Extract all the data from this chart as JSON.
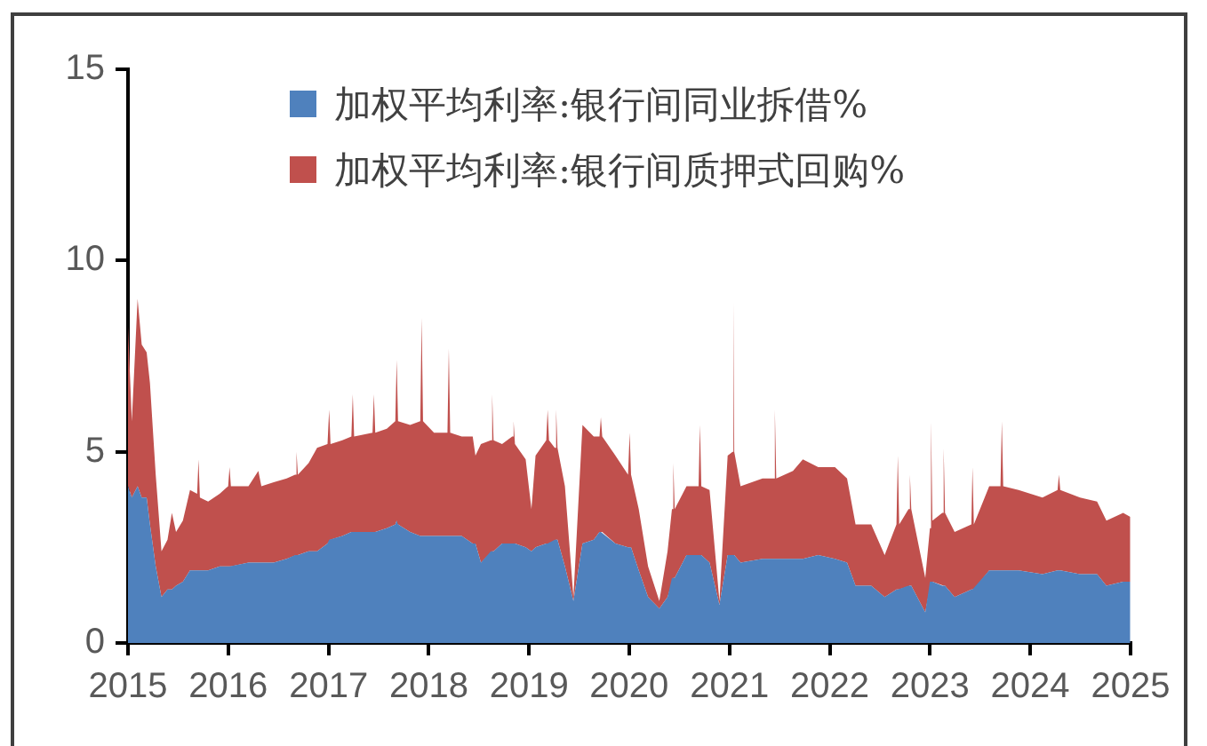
{
  "chart_data": {
    "type": "area",
    "stacked": true,
    "legend": "top",
    "x": [
      "2015-01-01",
      "2015-01-15",
      "2015-02-05",
      "2015-02-20",
      "2015-03-10",
      "2015-03-22",
      "2015-04-12",
      "2015-05-03",
      "2015-05-25",
      "2015-06-10",
      "2015-06-25",
      "2015-07-20",
      "2015-08-15",
      "2015-09-10",
      "2015-09-15",
      "2015-09-20",
      "2015-10-20",
      "2015-12-01",
      "2016-01-01",
      "2016-01-06",
      "2016-01-11",
      "2016-03-15",
      "2016-04-20",
      "2016-05-01",
      "2016-06-15",
      "2016-08-01",
      "2016-09-01",
      "2016-09-06",
      "2016-09-11",
      "2016-10-20",
      "2016-11-20",
      "2016-12-28",
      "2017-01-03",
      "2017-01-08",
      "2017-02-20",
      "2017-03-25",
      "2017-03-30",
      "2017-04-04",
      "2017-06-10",
      "2017-06-15",
      "2017-06-20",
      "2017-08-01",
      "2017-09-01",
      "2017-09-06",
      "2017-09-11",
      "2017-10-25",
      "2017-12-01",
      "2017-12-06",
      "2017-12-11",
      "2018-01-20",
      "2018-03-10",
      "2018-03-15",
      "2018-03-20",
      "2018-05-01",
      "2018-06-10",
      "2018-06-20",
      "2018-07-10",
      "2018-08-15",
      "2018-08-20",
      "2018-08-25",
      "2018-09-25",
      "2018-11-01",
      "2018-11-06",
      "2018-11-11",
      "2018-12-20",
      "2019-01-10",
      "2019-01-25",
      "2019-03-05",
      "2019-03-10",
      "2019-03-15",
      "2019-04-05",
      "2019-04-10",
      "2019-04-15",
      "2019-05-12",
      "2019-06-12",
      "2019-07-15",
      "2019-08-25",
      "2019-09-15",
      "2019-09-20",
      "2019-09-25",
      "2019-11-12",
      "2019-12-28",
      "2020-01-03",
      "2020-01-08",
      "2020-02-05",
      "2020-03-10",
      "2020-04-20",
      "2020-05-20",
      "2020-06-05",
      "2020-06-10",
      "2020-06-15",
      "2020-07-28",
      "2020-09-10",
      "2020-09-15",
      "2020-09-20",
      "2020-10-20",
      "2020-11-25",
      "2020-12-25",
      "2021-01-12",
      "2021-01-15",
      "2021-01-18",
      "2021-02-10",
      "2021-05-01",
      "2021-06-10",
      "2021-06-15",
      "2021-06-20",
      "2021-08-20",
      "2021-09-25",
      "2021-11-20",
      "2022-01-20",
      "2022-03-05",
      "2022-04-05",
      "2022-06-01",
      "2022-07-20",
      "2022-09-01",
      "2022-09-06",
      "2022-09-11",
      "2022-10-15",
      "2022-10-20",
      "2022-10-25",
      "2022-12-15",
      "2023-01-01",
      "2023-01-05",
      "2023-01-10",
      "2023-02-15",
      "2023-02-20",
      "2023-02-25",
      "2023-04-01",
      "2023-06-01",
      "2023-06-05",
      "2023-06-10",
      "2023-08-05",
      "2023-09-15",
      "2023-09-20",
      "2023-09-25",
      "2023-11-20",
      "2024-02-15",
      "2024-04-10",
      "2024-04-15",
      "2024-04-20",
      "2024-07-01",
      "2024-09-01",
      "2024-10-05",
      "2024-12-05",
      "2024-12-31"
    ],
    "series": [
      {
        "name": "加权平均利率:银行间同业拆借%",
        "color": "#4f81bd",
        "values": [
          4.1,
          3.8,
          4.1,
          3.8,
          3.8,
          3.1,
          2.0,
          1.2,
          1.4,
          1.4,
          1.5,
          1.6,
          1.9,
          1.9,
          1.9,
          1.9,
          1.9,
          2.0,
          2.0,
          2.0,
          2.0,
          2.1,
          2.1,
          2.1,
          2.1,
          2.2,
          2.3,
          2.3,
          2.3,
          2.4,
          2.4,
          2.6,
          2.7,
          2.7,
          2.8,
          2.9,
          2.9,
          2.9,
          2.9,
          2.9,
          2.9,
          3.0,
          3.1,
          3.2,
          3.1,
          2.9,
          2.8,
          2.8,
          2.8,
          2.8,
          2.8,
          2.8,
          2.8,
          2.8,
          2.6,
          2.6,
          2.1,
          2.4,
          2.4,
          2.4,
          2.6,
          2.6,
          2.6,
          2.6,
          2.5,
          2.4,
          2.5,
          2.6,
          2.6,
          2.6,
          2.7,
          2.7,
          2.7,
          2.0,
          1.1,
          2.6,
          2.7,
          2.9,
          2.9,
          2.9,
          2.6,
          2.5,
          2.5,
          2.5,
          1.9,
          1.2,
          0.9,
          1.2,
          1.7,
          1.7,
          1.7,
          2.3,
          2.3,
          2.3,
          2.3,
          2.1,
          1.0,
          2.3,
          2.3,
          2.3,
          2.3,
          2.1,
          2.2,
          2.2,
          2.2,
          2.2,
          2.2,
          2.2,
          2.3,
          2.2,
          2.1,
          1.5,
          1.5,
          1.2,
          1.4,
          1.4,
          1.4,
          1.5,
          1.5,
          1.5,
          0.8,
          1.6,
          1.6,
          1.6,
          1.5,
          1.5,
          1.5,
          1.2,
          1.4,
          1.4,
          1.4,
          1.9,
          1.9,
          1.9,
          1.9,
          1.9,
          1.8,
          1.9,
          1.9,
          1.9,
          1.8,
          1.8,
          1.5,
          1.6,
          1.6
        ]
      },
      {
        "name": "加权平均利率:银行间质押式回购%",
        "color": "#c0504d",
        "values": [
          4.2,
          2.0,
          4.9,
          4.0,
          3.8,
          3.7,
          2.4,
          1.2,
          1.3,
          2.0,
          1.4,
          1.6,
          2.1,
          2.0,
          2.9,
          1.9,
          1.8,
          1.9,
          2.1,
          2.6,
          2.1,
          2.0,
          2.4,
          2.0,
          2.1,
          2.1,
          2.1,
          2.7,
          2.1,
          2.3,
          2.7,
          2.6,
          3.4,
          2.5,
          2.5,
          2.5,
          3.6,
          2.5,
          2.6,
          3.6,
          2.6,
          2.6,
          2.7,
          4.2,
          2.7,
          2.8,
          3.0,
          5.7,
          3.0,
          2.7,
          2.7,
          4.9,
          2.7,
          2.6,
          2.8,
          2.3,
          3.1,
          2.9,
          4.1,
          2.9,
          2.6,
          2.8,
          3.2,
          2.6,
          2.3,
          1.1,
          2.4,
          2.7,
          3.5,
          2.7,
          2.4,
          3.4,
          2.4,
          2.1,
          0.1,
          3.1,
          2.7,
          2.5,
          3.0,
          2.5,
          2.3,
          1.9,
          3.0,
          1.9,
          1.6,
          0.8,
          0.2,
          1.2,
          1.8,
          3.0,
          1.8,
          1.8,
          1.8,
          3.4,
          1.8,
          1.9,
          0.1,
          2.6,
          2.7,
          6.6,
          2.7,
          2.0,
          2.1,
          2.1,
          3.9,
          2.1,
          2.3,
          2.6,
          2.3,
          2.4,
          2.2,
          1.6,
          1.6,
          1.1,
          1.7,
          3.5,
          1.7,
          2.0,
          2.9,
          2.0,
          0.9,
          1.4,
          4.2,
          1.6,
          1.9,
          3.6,
          1.9,
          1.7,
          1.7,
          3.2,
          1.7,
          2.2,
          2.2,
          3.9,
          2.2,
          2.1,
          2.0,
          2.1,
          2.5,
          2.1,
          2.0,
          1.9,
          1.7,
          1.8,
          1.7
        ]
      }
    ],
    "xlim": [
      "2015",
      "2025"
    ],
    "xticks": [
      "2015",
      "2016",
      "2017",
      "2018",
      "2019",
      "2020",
      "2021",
      "2022",
      "2023",
      "2024",
      "2025"
    ],
    "ylim": [
      0,
      15
    ],
    "yticks": [
      0,
      5,
      10,
      15
    ]
  }
}
